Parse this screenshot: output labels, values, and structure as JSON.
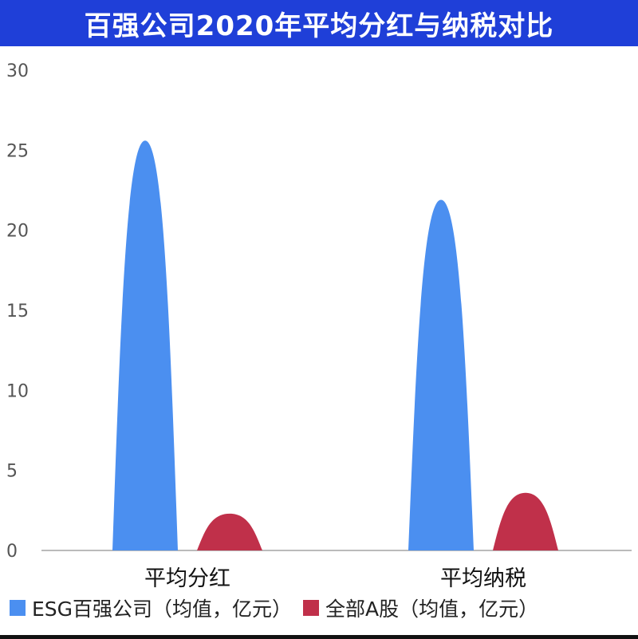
{
  "chart_data": {
    "type": "bar",
    "title": "百强公司2020年平均分红与纳税对比",
    "categories": [
      "平均分红",
      "平均纳税"
    ],
    "series": [
      {
        "name": "ESG百强公司（均值，亿元）",
        "values": [
          25.6,
          21.9
        ],
        "color": "#4b8ff0"
      },
      {
        "name": "全部A股（均值，亿元）",
        "values": [
          2.3,
          3.6
        ],
        "color": "#c0304a"
      }
    ],
    "ylim": [
      0,
      30
    ],
    "yticks": [
      0,
      5,
      10,
      15,
      20,
      25,
      30
    ],
    "grid": false,
    "legend_position": "bottom-left",
    "bar_shape": "rounded-peak"
  },
  "colors": {
    "title_background": "#1f3fd8",
    "title_text": "#ffffff",
    "axis_line": "#bbbbbb",
    "tick_text": "#555555"
  }
}
